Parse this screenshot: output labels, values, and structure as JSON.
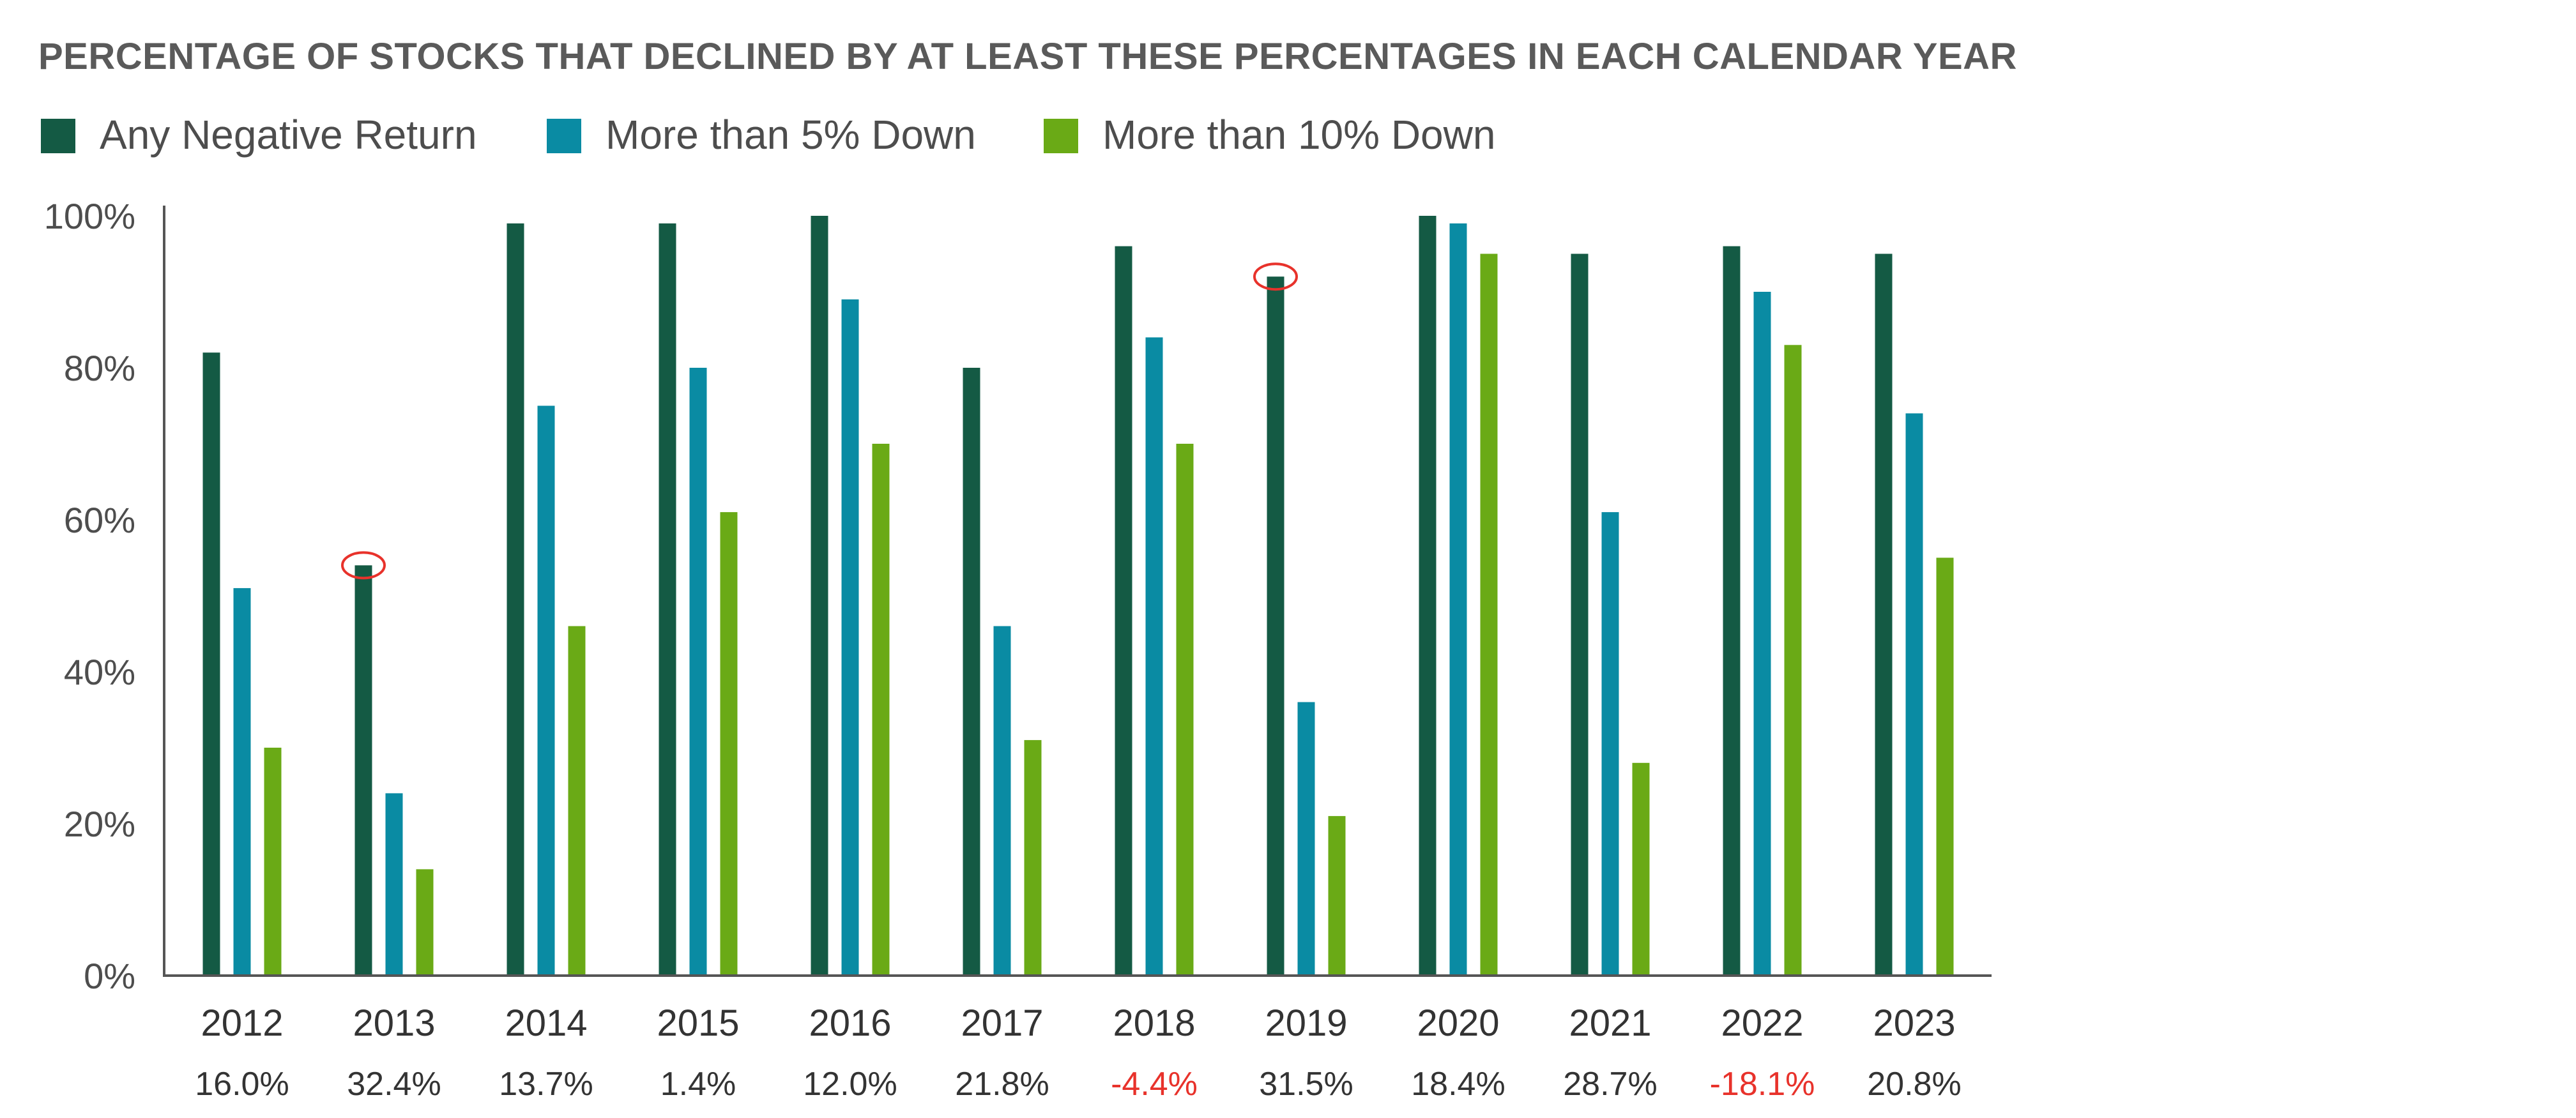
{
  "chart_data": {
    "type": "bar",
    "title": "PERCENTAGE OF STOCKS THAT DECLINED BY AT LEAST THESE PERCENTAGES IN EACH CALENDAR YEAR",
    "categories": [
      "2012",
      "2013",
      "2014",
      "2015",
      "2016",
      "2017",
      "2018",
      "2019",
      "2020",
      "2021",
      "2022",
      "2023"
    ],
    "returns": [
      "16.0%",
      "32.4%",
      "13.7%",
      "1.4%",
      "12.0%",
      "21.8%",
      "-4.4%",
      "31.5%",
      "18.4%",
      "28.7%",
      "-18.1%",
      "20.8%"
    ],
    "return_colors": [
      "#333333",
      "#333333",
      "#333333",
      "#333333",
      "#333333",
      "#333333",
      "#e8322b",
      "#333333",
      "#333333",
      "#333333",
      "#e8322b",
      "#333333"
    ],
    "series": [
      {
        "name": "Any Negative Return",
        "color": "#145a44",
        "values": [
          82,
          54,
          99,
          99,
          100,
          80,
          96,
          92,
          100,
          95,
          96,
          95
        ]
      },
      {
        "name": "More than 5% Down",
        "color": "#0a8ba3",
        "values": [
          51,
          24,
          75,
          80,
          89,
          46,
          84,
          36,
          99,
          61,
          90,
          74
        ]
      },
      {
        "name": "More than 10% Down",
        "color": "#6aaa16",
        "values": [
          30,
          14,
          46,
          61,
          70,
          31,
          70,
          21,
          95,
          28,
          83,
          55
        ]
      }
    ],
    "ylim": [
      0,
      100
    ],
    "yticks": [
      "0%",
      "20%",
      "40%",
      "60%",
      "80%",
      "100%"
    ],
    "ytick_values": [
      0,
      20,
      40,
      60,
      80,
      100
    ],
    "highlighted": [
      {
        "category": "2013",
        "series": "Any Negative Return"
      },
      {
        "category": "2019",
        "series": "Any Negative Return"
      }
    ],
    "highlight_color": "#e8322b",
    "legend_position": "top-left",
    "grid": false
  }
}
